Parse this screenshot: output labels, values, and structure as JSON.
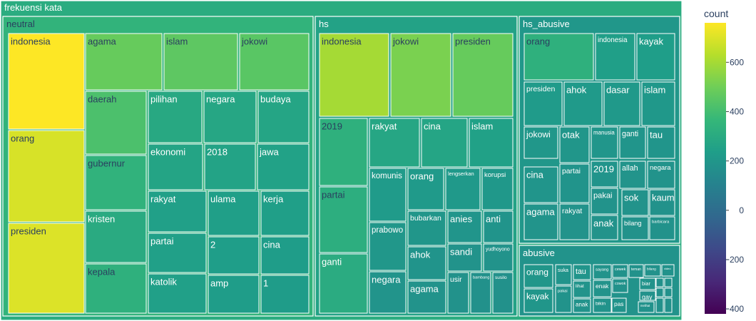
{
  "chart_data": {
    "type": "treemap",
    "colorbar": {
      "title": "count",
      "tickvals": [
        600,
        400,
        200,
        0,
        -200,
        -400
      ],
      "ticktext": [
        "600",
        "400",
        "200",
        "0",
        "−200",
        "−400"
      ],
      "range": [
        -420,
        760
      ]
    },
    "root": {
      "label": "frekuensi kata",
      "children": [
        {
          "label": "neutral",
          "children": [
            {
              "label": "indonesia",
              "value": 760
            },
            {
              "label": "orang",
              "value": 690
            },
            {
              "label": "presiden",
              "value": 700
            },
            {
              "label": "agama",
              "value": 480
            },
            {
              "label": "islam",
              "value": 460
            },
            {
              "label": "jokowi",
              "value": 450
            },
            {
              "label": "daerah",
              "value": 420
            },
            {
              "label": "gubernur",
              "value": 340
            },
            {
              "label": "kristen",
              "value": 300
            },
            {
              "label": "kepala",
              "value": 330
            },
            {
              "label": "pilihan",
              "value": 290
            },
            {
              "label": "negara",
              "value": 280
            },
            {
              "label": "budaya",
              "value": 270
            },
            {
              "label": "ekonomi",
              "value": 265
            },
            {
              "label": "2018",
              "value": 260
            },
            {
              "label": "jawa",
              "value": 255
            },
            {
              "label": "rakyat",
              "value": 245
            },
            {
              "label": "ulama",
              "value": 240
            },
            {
              "label": "kerja",
              "value": 240
            },
            {
              "label": "partai",
              "value": 245
            },
            {
              "label": "2",
              "value": 235
            },
            {
              "label": "cina",
              "value": 230
            },
            {
              "label": "katolik",
              "value": 245
            },
            {
              "label": "amp",
              "value": 230
            },
            {
              "label": "1",
              "value": 228
            }
          ]
        },
        {
          "label": "hs",
          "children": [
            {
              "label": "indonesia",
              "value": 600
            },
            {
              "label": "jokowi",
              "value": 520
            },
            {
              "label": "presiden",
              "value": 480
            },
            {
              "label": "2019",
              "value": 330
            },
            {
              "label": "partai",
              "value": 320
            },
            {
              "label": "ganti",
              "value": 305
            },
            {
              "label": "rakyat",
              "value": 280
            },
            {
              "label": "cina",
              "value": 270
            },
            {
              "label": "islam",
              "value": 250
            },
            {
              "label": "komunis",
              "value": 220
            },
            {
              "label": "orang",
              "value": 215
            },
            {
              "label": "lengserkan",
              "value": 212
            },
            {
              "label": "korupsi",
              "value": 208
            },
            {
              "label": "prabowo",
              "value": 205
            },
            {
              "label": "bubarkan",
              "value": 200
            },
            {
              "label": "anies",
              "value": 195
            },
            {
              "label": "anti",
              "value": 190
            },
            {
              "label": "ahok",
              "value": 190
            },
            {
              "label": "sandi",
              "value": 186
            },
            {
              "label": "yudhoyono",
              "value": 182
            },
            {
              "label": "negara",
              "value": 188
            },
            {
              "label": "agama",
              "value": 186
            },
            {
              "label": "usir",
              "value": 180
            },
            {
              "label": "bambang",
              "value": 176
            },
            {
              "label": "susilo",
              "value": 176
            }
          ]
        },
        {
          "label": "hs_abusive",
          "children": [
            {
              "label": "orang",
              "value": 330
            },
            {
              "label": "indonesia",
              "value": 240
            },
            {
              "label": "kayak",
              "value": 235
            },
            {
              "label": "presiden",
              "value": 220
            },
            {
              "label": "ahok",
              "value": 215
            },
            {
              "label": "dasar",
              "value": 212
            },
            {
              "label": "islam",
              "value": 208
            },
            {
              "label": "jokowi",
              "value": 205
            },
            {
              "label": "otak",
              "value": 200
            },
            {
              "label": "manusia",
              "value": 196
            },
            {
              "label": "ganti",
              "value": 194
            },
            {
              "label": "tau",
              "value": 192
            },
            {
              "label": "cina",
              "value": 192
            },
            {
              "label": "partai",
              "value": 190
            },
            {
              "label": "2019",
              "value": 190
            },
            {
              "label": "allah",
              "value": 188
            },
            {
              "label": "negara",
              "value": 186
            },
            {
              "label": "agama",
              "value": 188
            },
            {
              "label": "rakyat",
              "value": 186
            },
            {
              "label": "pakai",
              "value": 184
            },
            {
              "label": "sok",
              "value": 183
            },
            {
              "label": "kaum",
              "value": 181
            },
            {
              "label": "anak",
              "value": 182
            },
            {
              "label": "bilang",
              "value": 180
            },
            {
              "label": "barbicara",
              "value": 178
            }
          ]
        },
        {
          "label": "abusive",
          "children": [
            {
              "label": "orang",
              "value": 200
            },
            {
              "label": "kayak",
              "value": 198
            },
            {
              "label": "suka",
              "value": 190
            },
            {
              "label": "pakai",
              "value": 185
            },
            {
              "label": "tau",
              "value": 192
            },
            {
              "label": "lihat",
              "value": 188
            },
            {
              "label": "anak",
              "value": 186
            },
            {
              "label": "sayang",
              "value": 182
            },
            {
              "label": "enak",
              "value": 184
            },
            {
              "label": "bikin",
              "value": 182
            },
            {
              "label": "cewek",
              "value": 180
            },
            {
              "label": "cowok",
              "value": 180
            },
            {
              "label": "pas",
              "value": 183
            },
            {
              "label": "teman",
              "value": 179
            },
            {
              "label": "biar",
              "value": 183
            },
            {
              "label": "gay",
              "value": 181
            },
            {
              "label": "melihat",
              "value": 178
            },
            {
              "label": "bilang",
              "value": 180
            },
            {
              "label": "video",
              "value": 180
            },
            {
              "label": "",
              "value": 176
            },
            {
              "label": "",
              "value": 176
            },
            {
              "label": "",
              "value": 175
            },
            {
              "label": "",
              "value": 175
            },
            {
              "label": "",
              "value": 174
            },
            {
              "label": "",
              "value": 174
            }
          ]
        }
      ]
    }
  }
}
